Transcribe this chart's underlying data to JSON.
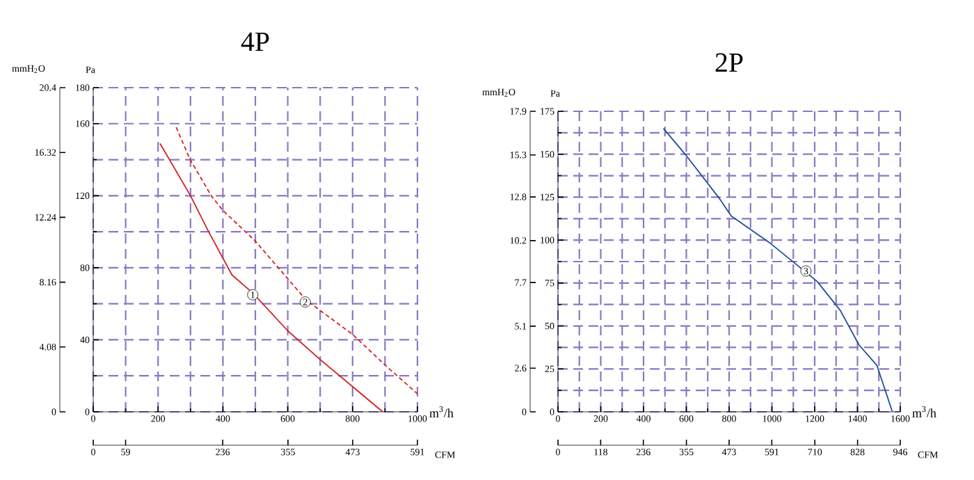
{
  "chart_data": [
    {
      "type": "line",
      "title": "4P",
      "xlabel": "m$^{3}$/h",
      "ylabel": "Pa",
      "y2label": "mmH$_{2}$O",
      "x2label": "CFM",
      "xlim": [
        0,
        1000
      ],
      "xticks": [
        0,
        200,
        400,
        600,
        800,
        1000
      ],
      "ylim": [
        0,
        180
      ],
      "yticks": [
        0,
        40,
        80,
        120,
        160,
        180
      ],
      "y2lim": [
        0,
        20.4
      ],
      "y2ticks": [
        0,
        4.08,
        8.16,
        12.24,
        16.32,
        20.4
      ],
      "x2lim": [
        0,
        591
      ],
      "x2ticks": [
        0,
        59,
        236,
        355,
        473,
        591
      ],
      "grid": true,
      "series": [
        {
          "color": "#d42020",
          "line_style": "solid",
          "x": [
            206,
            300,
            356,
            428,
            492,
            600,
            700,
            800,
            893
          ],
          "values": [
            149,
            120,
            100,
            76,
            66,
            45,
            29,
            14,
            0
          ]
        },
        {
          "color": "#d42020",
          "line_style": "dashed",
          "x": [
            256,
            299,
            364,
            399,
            499,
            657,
            800,
            900,
            1000
          ],
          "values": [
            158,
            140,
            120,
            112,
            95,
            62,
            43,
            26,
            10
          ]
        }
      ],
      "annotations": [
        {
          "text": "1",
          "x": 492,
          "y": 65
        },
        {
          "text": "2",
          "x": 654,
          "y": 61
        }
      ]
    },
    {
      "type": "line",
      "title": "2P",
      "xlabel": "m$^{3}$/h",
      "ylabel": "Pa",
      "y2label": "mmH$_{2}$O",
      "x2label": "CFM",
      "xlim": [
        0,
        1600
      ],
      "xticks": [
        0,
        200,
        400,
        600,
        800,
        1000,
        1200,
        1400,
        1600
      ],
      "ylim": [
        0,
        175
      ],
      "yticks": [
        0,
        25,
        50,
        75,
        100,
        125,
        150,
        175
      ],
      "y2lim": [
        0,
        17.9
      ],
      "y2ticks": [
        0,
        2.6,
        5.1,
        7.7,
        10.2,
        12.8,
        15.3,
        17.9
      ],
      "x2lim": [
        0,
        946
      ],
      "x2ticks": [
        0,
        118,
        236,
        355,
        473,
        591,
        710,
        828,
        946
      ],
      "grid": true,
      "series": [
        {
          "color": "#1f4e9a",
          "line_style": "solid",
          "x": [
            493,
            601,
            756,
            810,
            994,
            1211,
            1320,
            1407,
            1491,
            1563
          ],
          "values": [
            165,
            149,
            124,
            114,
            98,
            76,
            59,
            39,
            27,
            0
          ]
        }
      ],
      "annotations": [
        {
          "text": "3",
          "x": 1159,
          "y": 82
        }
      ]
    }
  ]
}
